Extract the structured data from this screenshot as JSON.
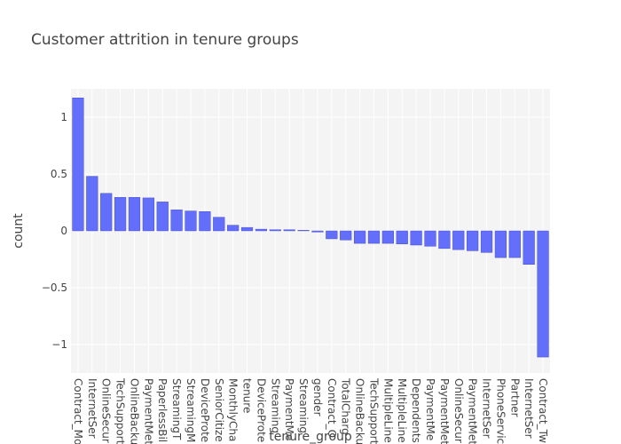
{
  "chart_data": {
    "type": "bar",
    "title": "Customer attrition in tenure groups",
    "xlabel": "tenure_group",
    "ylabel": "count",
    "ylim": [
      -1.25,
      1.25
    ],
    "yticks": [
      -1,
      -0.5,
      0,
      0.5,
      1
    ],
    "ytick_labels": [
      "−1",
      "−0.5",
      "0",
      "0.5",
      "1"
    ],
    "grid": true,
    "colors": {
      "bar": "#636efa",
      "plot_bg": "#f4f4f4",
      "grid": "#ffffff"
    },
    "categories": [
      "Contract_Mo",
      "InternetSer",
      "OnlineSecur",
      "TechSupport",
      "OnlineBacku",
      "PaymentMet",
      "PaperlessBil",
      "StreamingT",
      "StreamingM",
      "DeviceProte",
      "SeniorCitize",
      "MonthlyCha",
      "tenure",
      "DeviceProte",
      "Streaming",
      "PaymentMe",
      "Streaming",
      "gender",
      "Contract_O",
      "TotalCharg",
      "OnlineBacku",
      "TechSupport",
      "MultipleLine",
      "MultipleLine",
      "Dependents",
      "PaymentMe",
      "PaymentMet",
      "OnlineSecur",
      "PaymentMet",
      "InternetSer",
      "PhoneServic",
      "Partner",
      "InternetSer",
      "Contract_Tw"
    ],
    "values": [
      1.17,
      0.48,
      0.33,
      0.295,
      0.295,
      0.29,
      0.255,
      0.185,
      0.175,
      0.17,
      0.12,
      0.05,
      0.03,
      0.015,
      0.01,
      0.01,
      0.005,
      -0.01,
      -0.07,
      -0.08,
      -0.11,
      -0.11,
      -0.11,
      -0.115,
      -0.125,
      -0.135,
      -0.155,
      -0.165,
      -0.175,
      -0.19,
      -0.235,
      -0.235,
      -0.295,
      -1.11
    ]
  }
}
